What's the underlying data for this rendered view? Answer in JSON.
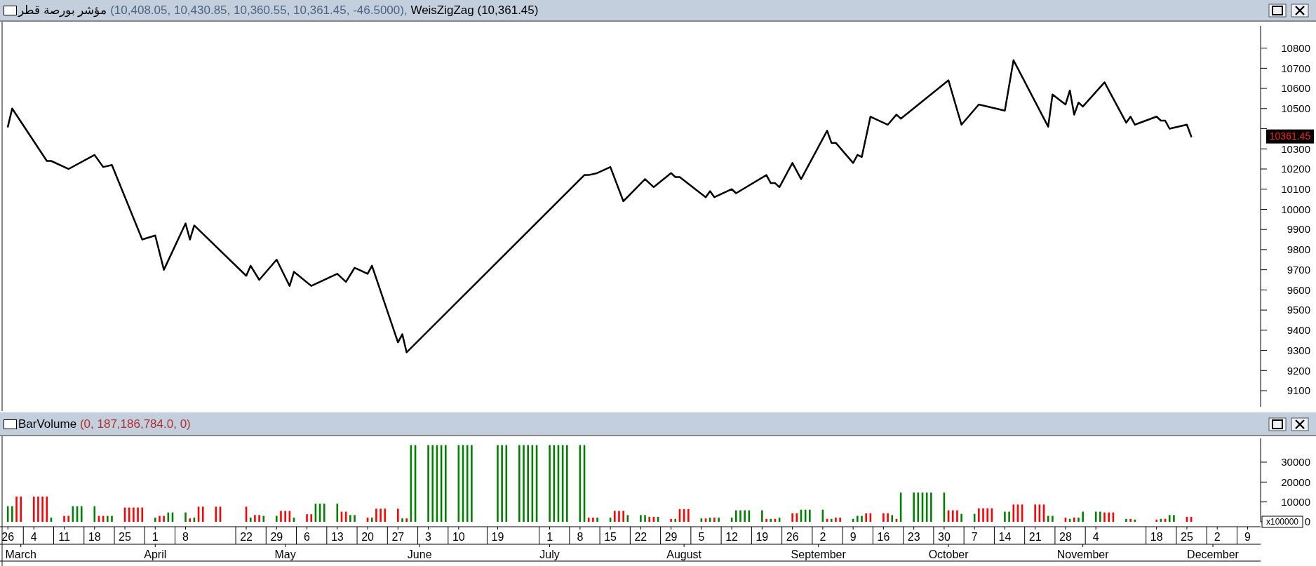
{
  "chart_data": [
    {
      "type": "line",
      "title": "مؤشر بورصة قطر",
      "subtitle": "(10,408.05, 10,430.85, 10,360.55, 10,361.45, -46.5000),",
      "series": [
        {
          "name": "WeisZigZag (10,361.45)",
          "color": "#000000",
          "x": [
            "--02-26",
            "--02-27",
            "--03-07",
            "--03-08",
            "--03-12",
            "--03-18",
            "--03-20",
            "--03-22",
            "--03-29",
            "--04-01",
            "--04-03",
            "--04-08",
            "--04-09",
            "--04-10",
            "--04-22",
            "--04-23",
            "--04-25",
            "--04-29",
            "--05-02",
            "--05-03",
            "--05-07",
            "--05-13",
            "--05-15",
            "--05-17",
            "--05-20",
            "--05-21",
            "--05-27",
            "--05-28",
            "--05-29",
            "--07-09",
            "--07-10",
            "--07-12",
            "--07-15",
            "--07-18",
            "--07-23",
            "--07-25",
            "--07-29",
            "--07-30",
            "--07-31",
            "--08-06",
            "--08-07",
            "--08-08",
            "--08-12",
            "--08-13",
            "--08-20",
            "--08-21",
            "--08-22",
            "--08-23",
            "--08-26",
            "--08-28",
            "--09-03",
            "--09-04",
            "--09-05",
            "--09-09",
            "--09-10",
            "--09-11",
            "--09-13",
            "--09-17",
            "--09-19",
            "--09-20",
            "--10-01",
            "--10-04",
            "--10-08",
            "--10-14",
            "--10-16",
            "--10-24",
            "--10-25",
            "--10-28",
            "--10-29",
            "--10-30",
            "--10-31",
            "--11-01",
            "--11-06",
            "--11-11",
            "--11-12",
            "--11-13",
            "--11-18",
            "--11-19",
            "--11-20",
            "--11-21",
            "--11-25",
            "--11-26"
          ],
          "values": [
            10410,
            10500,
            10240,
            10240,
            10200,
            10270,
            10210,
            10220,
            9850,
            9870,
            9700,
            9930,
            9850,
            9920,
            9670,
            9720,
            9650,
            9750,
            9620,
            9690,
            9620,
            9680,
            9640,
            9710,
            9680,
            9720,
            9340,
            9380,
            9290,
            10170,
            10170,
            10180,
            10210,
            10040,
            10150,
            10110,
            10180,
            10160,
            10160,
            10060,
            10090,
            10060,
            10100,
            10080,
            10170,
            10130,
            10130,
            10110,
            10230,
            10150,
            10390,
            10330,
            10330,
            10230,
            10270,
            10260,
            10460,
            10420,
            10470,
            10450,
            10640,
            10420,
            10520,
            10490,
            10740,
            10410,
            10570,
            10520,
            10590,
            10470,
            10530,
            10510,
            10630,
            10430,
            10460,
            10420,
            10460,
            10440,
            10440,
            10400,
            10420,
            10361.45
          ]
        }
      ],
      "xlim": [
        "--02-25",
        "--12-12"
      ],
      "ylim": [
        9020,
        10910
      ],
      "yticks": [
        9100,
        9200,
        9300,
        9400,
        9500,
        9600,
        9700,
        9800,
        9900,
        10000,
        10100,
        10200,
        10300,
        {
          "value": 10400,
          "label": null
        },
        10500,
        10600,
        10700,
        10800
      ],
      "tick_labels": "y",
      "line_style": "solid",
      "marker": "none",
      "annotations": [
        "10361.45"
      ]
    },
    {
      "type": "bar",
      "title": "BarVolume",
      "subtitle": "(0, 187,186,784.0, 0)",
      "ylabel": "x100000",
      "series": [
        {
          "color": "#008000",
          "x": [
            "--02-26",
            "--02-27",
            "--03-08",
            "--03-13",
            "--03-14",
            "--03-15",
            "--03-18",
            "--03-21",
            "--03-22",
            "--04-01",
            "--04-04",
            "--04-05",
            "--04-08",
            "--04-10",
            "--04-23",
            "--04-26",
            "--04-29",
            "--05-03",
            "--05-08",
            "--05-09",
            "--05-10",
            "--05-13",
            "--05-16",
            "--05-17",
            "--05-21",
            "--05-28",
            "--05-30",
            "--05-31",
            "--06-03",
            "--06-04",
            "--06-05",
            "--06-06",
            "--06-07",
            "--06-10",
            "--06-11",
            "--06-12",
            "--06-13",
            "--06-19",
            "--06-20",
            "--06-21",
            "--06-24",
            "--06-25",
            "--06-26",
            "--06-27",
            "--06-28",
            "--07-01",
            "--07-02",
            "--07-03",
            "--07-04",
            "--07-05",
            "--07-08",
            "--07-09",
            "--07-12",
            "--07-15",
            "--07-19",
            "--07-22",
            "--07-23",
            "--07-26",
            "--07-30",
            "--08-05",
            "--08-07",
            "--08-09",
            "--08-12",
            "--08-13",
            "--08-14",
            "--08-15",
            "--08-16",
            "--08-19",
            "--08-21",
            "--08-23",
            "--08-28",
            "--08-29",
            "--08-30",
            "--09-02",
            "--09-04",
            "--09-09",
            "--09-10",
            "--09-11",
            "--09-18",
            "--09-20",
            "--09-23",
            "--09-24",
            "--09-25",
            "--09-26",
            "--09-27",
            "--09-30",
            "--10-04",
            "--10-07",
            "--10-14",
            "--10-15",
            "--10-24",
            "--10-25",
            "--10-29",
            "--10-31",
            "--11-01",
            "--11-04",
            "--11-05",
            "--11-11",
            "--11-13",
            "--11-19",
            "--11-21",
            "--11-22"
          ],
          "values": [
            7800,
            7800,
            2100,
            7800,
            7800,
            7800,
            7800,
            3000,
            3000,
            2100,
            4700,
            4700,
            4700,
            2100,
            2100,
            3000,
            3000,
            2100,
            9100,
            9100,
            9100,
            9100,
            3400,
            3400,
            2100,
            1700,
            38600,
            38600,
            38600,
            38600,
            38600,
            38600,
            38600,
            38600,
            38600,
            38600,
            38600,
            38600,
            38600,
            38600,
            38600,
            38600,
            38600,
            38600,
            38600,
            38600,
            38600,
            38600,
            38600,
            38600,
            38600,
            38600,
            2100,
            2100,
            3400,
            3400,
            3400,
            2500,
            1500,
            1700,
            2100,
            2100,
            2100,
            5800,
            5800,
            5800,
            5800,
            5800,
            1500,
            2100,
            6100,
            6100,
            6100,
            6100,
            1500,
            1500,
            3000,
            3000,
            3400,
            14700,
            14700,
            14700,
            14700,
            14700,
            14700,
            14700,
            4000,
            4000,
            5100,
            5100,
            3000,
            3000,
            1500,
            2100,
            5100,
            5100,
            5100,
            1500,
            1100,
            1500,
            3400,
            3400
          ]
        },
        {
          "color": "#ff0000",
          "x": [
            "--02-28",
            "--03-01",
            "--03-04",
            "--03-05",
            "--03-06",
            "--03-07",
            "--03-11",
            "--03-12",
            "--03-19",
            "--03-20",
            "--03-25",
            "--03-26",
            "--03-27",
            "--03-28",
            "--03-29",
            "--04-02",
            "--04-03",
            "--04-09",
            "--04-11",
            "--04-12",
            "--04-15",
            "--04-16",
            "--04-22",
            "--04-24",
            "--04-25",
            "--04-30",
            "--05-01",
            "--05-02",
            "--05-06",
            "--05-07",
            "--05-14",
            "--05-15",
            "--05-20",
            "--05-22",
            "--05-23",
            "--05-24",
            "--05-27",
            "--05-29",
            "--07-10",
            "--07-11",
            "--07-16",
            "--07-17",
            "--07-18",
            "--07-24",
            "--07-25",
            "--07-29",
            "--07-31",
            "--08-01",
            "--08-02",
            "--08-06",
            "--08-08",
            "--08-20",
            "--08-22",
            "--08-26",
            "--08-27",
            "--09-03",
            "--09-05",
            "--09-06",
            "--09-12",
            "--09-13",
            "--09-16",
            "--09-17",
            "--09-19",
            "--10-01",
            "--10-02",
            "--10-03",
            "--10-08",
            "--10-09",
            "--10-10",
            "--10-11",
            "--10-16",
            "--10-17",
            "--10-18",
            "--10-21",
            "--10-22",
            "--10-23",
            "--10-28",
            "--10-30",
            "--11-06",
            "--11-07",
            "--11-08",
            "--11-12",
            "--11-18",
            "--11-20",
            "--11-25",
            "--11-26"
          ],
          "values": [
            12700,
            12700,
            12700,
            12700,
            12700,
            12700,
            3000,
            3000,
            3000,
            3000,
            7200,
            7200,
            7200,
            7200,
            7200,
            3000,
            3000,
            1700,
            7600,
            7600,
            7600,
            7600,
            7600,
            3400,
            3400,
            5500,
            5500,
            5500,
            3800,
            3800,
            5100,
            5100,
            2100,
            6600,
            6600,
            6600,
            6600,
            1700,
            2100,
            2100,
            5500,
            5500,
            5500,
            2500,
            2500,
            1500,
            6400,
            6400,
            6400,
            1700,
            2100,
            1500,
            1500,
            4300,
            4300,
            1500,
            2100,
            2100,
            4300,
            4300,
            4300,
            4300,
            1500,
            5800,
            5800,
            5800,
            6800,
            6800,
            6800,
            6800,
            8700,
            8700,
            8700,
            8700,
            8700,
            8700,
            2100,
            2100,
            4700,
            4700,
            4700,
            1500,
            1100,
            1500,
            2500,
            2500
          ]
        }
      ],
      "xlim": [
        "--02-25",
        "--12-12"
      ],
      "ylim": [
        0,
        42000
      ],
      "yticks": [
        0,
        10000,
        20000,
        30000
      ],
      "xticks": [
        {
          "value": "--02-26",
          "label": "26"
        },
        {
          "value": "--03-04",
          "label": "4"
        },
        {
          "value": "--03-11",
          "label": "11"
        },
        {
          "value": "--03-18",
          "label": "18"
        },
        {
          "value": "--03-25",
          "label": "25"
        },
        {
          "value": "--04-01",
          "label": "1"
        },
        {
          "value": "--04-08",
          "label": "8"
        },
        {
          "value": "--04-22",
          "label": "22"
        },
        {
          "value": "--04-29",
          "label": "29"
        },
        {
          "value": "--05-06",
          "label": "6"
        },
        {
          "value": "--05-13",
          "label": "13"
        },
        {
          "value": "--05-20",
          "label": "20"
        },
        {
          "value": "--05-27",
          "label": "27"
        },
        {
          "value": "--06-03",
          "label": "3"
        },
        {
          "value": "--06-10",
          "label": "10"
        },
        {
          "value": "--06-19",
          "label": "19"
        },
        {
          "value": "--07-01",
          "label": "1"
        },
        {
          "value": "--07-08",
          "label": "8"
        },
        {
          "value": "--07-15",
          "label": "15"
        },
        {
          "value": "--07-22",
          "label": "22"
        },
        {
          "value": "--07-29",
          "label": "29"
        },
        {
          "value": "--08-05",
          "label": "5"
        },
        {
          "value": "--08-12",
          "label": "12"
        },
        {
          "value": "--08-19",
          "label": "19"
        },
        {
          "value": "--08-26",
          "label": "26"
        },
        {
          "value": "--09-02",
          "label": "2"
        },
        {
          "value": "--09-09",
          "label": "9"
        },
        {
          "value": "--09-16",
          "label": "16"
        },
        {
          "value": "--09-23",
          "label": "23"
        },
        {
          "value": "--09-30",
          "label": "30"
        },
        {
          "value": "--10-07",
          "label": "7"
        },
        {
          "value": "--10-14",
          "label": "14"
        },
        {
          "value": "--10-21",
          "label": "21"
        },
        {
          "value": "--10-28",
          "label": "28"
        },
        {
          "value": "--11-04",
          "label": "4"
        },
        {
          "value": "--11-18",
          "label": "18"
        },
        {
          "value": "--11-25",
          "label": "25"
        },
        {
          "value": "--12-02",
          "label": "2"
        },
        {
          "value": "--12-09",
          "label": "9"
        }
      ],
      "x2lim": [
        "--02-25",
        "--12-12"
      ],
      "x2ticks": [
        {
          "value": "--03-01",
          "label": "March"
        },
        {
          "value": "--04-01",
          "label": "April"
        },
        {
          "value": "--05-01",
          "label": "May"
        },
        {
          "value": "--06-01",
          "label": "June"
        },
        {
          "value": "--07-01",
          "label": "July"
        },
        {
          "value": "--08-01",
          "label": "August"
        },
        {
          "value": "--09-01",
          "label": "September"
        },
        {
          "value": "--10-01",
          "label": "October"
        },
        {
          "value": "--11-01",
          "label": "November"
        },
        {
          "value": "--12-01",
          "label": "December"
        }
      ]
    }
  ]
}
